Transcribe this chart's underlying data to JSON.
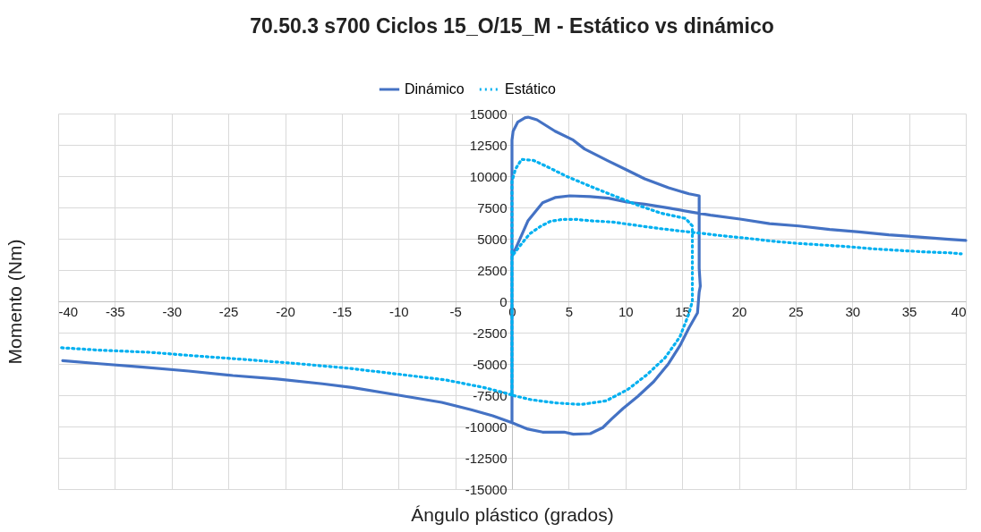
{
  "chart_data": {
    "type": "line",
    "title": "70.50.3 s700 Ciclos 15_O/15_M - Estático vs dinámico",
    "xlabel": "Ángulo plástico (grados)",
    "ylabel": "Momento (Nm)",
    "xlim": [
      -40,
      40
    ],
    "xticks": [
      -40,
      -35,
      -30,
      -25,
      -20,
      -15,
      -10,
      -5,
      0,
      5,
      10,
      15,
      20,
      25,
      30,
      35,
      40
    ],
    "ylim": [
      -15000,
      15000
    ],
    "yticks": [
      -15000,
      -12500,
      -10000,
      -7500,
      -5000,
      -2500,
      0,
      2500,
      5000,
      7500,
      10000,
      12500,
      15000
    ],
    "grid": true,
    "legend": "top",
    "marker": "none",
    "series": [
      {
        "name": "Dinámico",
        "color": "#4472c4",
        "line_style": "solid",
        "x": [
          -39.6,
          -36.4,
          -32.5,
          -28.5,
          -24.6,
          -20.7,
          -16.7,
          -14.1,
          -10.1,
          -6.2,
          -3.6,
          -1.7,
          0,
          0,
          0.1,
          0.5,
          1.16,
          1.42,
          2.2,
          3.8,
          5.4,
          6.4,
          8.5,
          10.1,
          11.7,
          13.8,
          15.6,
          16.5,
          16.5,
          16.6,
          16.5,
          16.35,
          15.6,
          14.8,
          13.8,
          12.5,
          11.1,
          9.8,
          8.8,
          8.0,
          6.9,
          5.4,
          4.6,
          2.7,
          1.4,
          0,
          0,
          0.37,
          1.42,
          2.7,
          3.8,
          5.1,
          6.9,
          8.5,
          10.1,
          11.7,
          13.8,
          15.9,
          16.4,
          17.5,
          20.1,
          22.7,
          25.3,
          28.0,
          30.6,
          33.2,
          35.9,
          38.5,
          40
        ],
        "values": [
          -4740,
          -4980,
          -5260,
          -5570,
          -5930,
          -6210,
          -6590,
          -6880,
          -7480,
          -8070,
          -8660,
          -9140,
          -9690,
          12880,
          13590,
          14310,
          14670,
          14710,
          14500,
          13590,
          12880,
          12170,
          11210,
          10500,
          9790,
          9070,
          8590,
          8430,
          2640,
          1210,
          740,
          -930,
          -2120,
          -3550,
          -4980,
          -6410,
          -7590,
          -8550,
          -9380,
          -10090,
          -10570,
          -10620,
          -10450,
          -10450,
          -10210,
          -9690,
          3590,
          4310,
          6450,
          7880,
          8290,
          8430,
          8360,
          8240,
          7930,
          7760,
          7450,
          7120,
          7050,
          6880,
          6570,
          6210,
          6020,
          5740,
          5550,
          5310,
          5140,
          4950,
          4860
        ]
      },
      {
        "name": "Estático",
        "color": "#00b0f0",
        "line_style": "dotted",
        "x": [
          -39.7,
          -36.4,
          -32.0,
          -27.6,
          -23.2,
          -18.9,
          -14.5,
          -10.1,
          -5.8,
          -2.5,
          -0.3,
          0,
          0,
          0.3,
          0.84,
          1.9,
          2.9,
          4.9,
          6.9,
          9.0,
          11.0,
          13.1,
          15.3,
          15.9,
          15.9,
          15.9,
          15.6,
          14.8,
          13.5,
          11.9,
          10.2,
          8.3,
          6.1,
          3.9,
          1.7,
          0,
          0,
          0.84,
          1.55,
          2.5,
          3.4,
          4.5,
          5.6,
          6.7,
          8.9,
          11.1,
          13.2,
          15.5,
          16.5,
          18.8,
          20.9,
          23.1,
          25.3,
          27.4,
          29.7,
          31.9,
          34.1,
          36.3,
          38.5,
          39.6
        ],
        "values": [
          -3710,
          -3900,
          -4070,
          -4380,
          -4670,
          -4980,
          -5340,
          -5810,
          -6290,
          -6880,
          -7400,
          -7500,
          9570,
          10550,
          11340,
          11260,
          10840,
          9950,
          9190,
          8430,
          7710,
          7050,
          6620,
          6020,
          5020,
          20,
          -980,
          -2840,
          -4500,
          -5860,
          -7050,
          -7950,
          -8240,
          -8120,
          -7860,
          -7500,
          3600,
          4590,
          5380,
          5980,
          6400,
          6550,
          6550,
          6450,
          6330,
          6050,
          5790,
          5550,
          5450,
          5210,
          5020,
          4790,
          4620,
          4500,
          4360,
          4190,
          4070,
          3950,
          3880,
          3790
        ]
      }
    ]
  }
}
